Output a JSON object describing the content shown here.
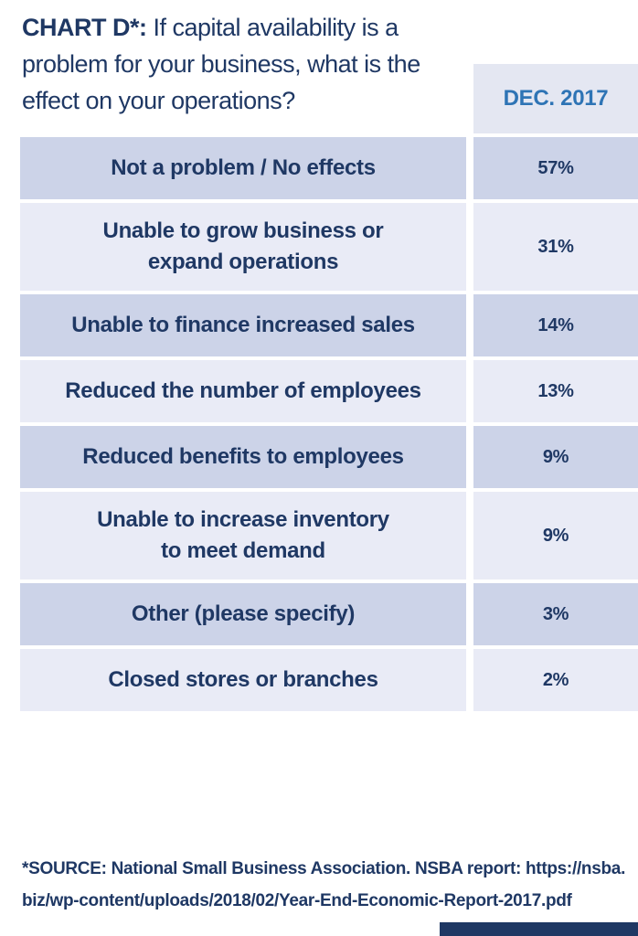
{
  "title": {
    "prefix": "CHART D*:",
    "text": " If capital availability is a\nproblem for your business, what is the\neffect on your operations?"
  },
  "column_header": "DEC. 2017",
  "rows": [
    {
      "label": "Not a problem / No effects",
      "value": "57%"
    },
    {
      "label": "Unable to grow business or\nexpand operations",
      "value": "31%"
    },
    {
      "label": "Unable to finance increased sales",
      "value": "14%"
    },
    {
      "label": "Reduced the number of employees",
      "value": "13%"
    },
    {
      "label": "Reduced benefits to employees",
      "value": "9%"
    },
    {
      "label": "Unable to increase inventory\nto meet demand",
      "value": "9%"
    },
    {
      "label": "Other (please specify)",
      "value": "3%"
    },
    {
      "label": "Closed stores or branches",
      "value": "2%"
    }
  ],
  "source_lines": [
    "*SOURCE: National Small Business Association. NSBA report: https://nsba.",
    "biz/wp-content/uploads/2018/02/Year-End-Economic-Report-2017.pdf"
  ],
  "colors": {
    "navy": "#1f3864",
    "header_blue": "#2e74b5",
    "row_dark_bg": "#ccd3e8",
    "row_light_bg": "#e9ebf6",
    "header_bg": "#e4e7f2",
    "page_bg": "#ffffff",
    "footer_bar": "#1f3864"
  },
  "chart_data": {
    "type": "table",
    "title": "CHART D*: If capital availability is a problem for your business, what is the effect on your operations?",
    "column_header": "DEC. 2017",
    "categories": [
      "Not a problem / No effects",
      "Unable to grow business or expand operations",
      "Unable to finance increased sales",
      "Reduced the number of employees",
      "Reduced benefits to employees",
      "Unable to increase inventory to meet demand",
      "Other (please specify)",
      "Closed stores or branches"
    ],
    "values": [
      57,
      31,
      14,
      13,
      9,
      9,
      3,
      2
    ],
    "unit": "%",
    "source": "*SOURCE: National Small Business Association. NSBA report: https://nsba.biz/wp-content/uploads/2018/02/Year-End-Economic-Report-2017.pdf"
  }
}
